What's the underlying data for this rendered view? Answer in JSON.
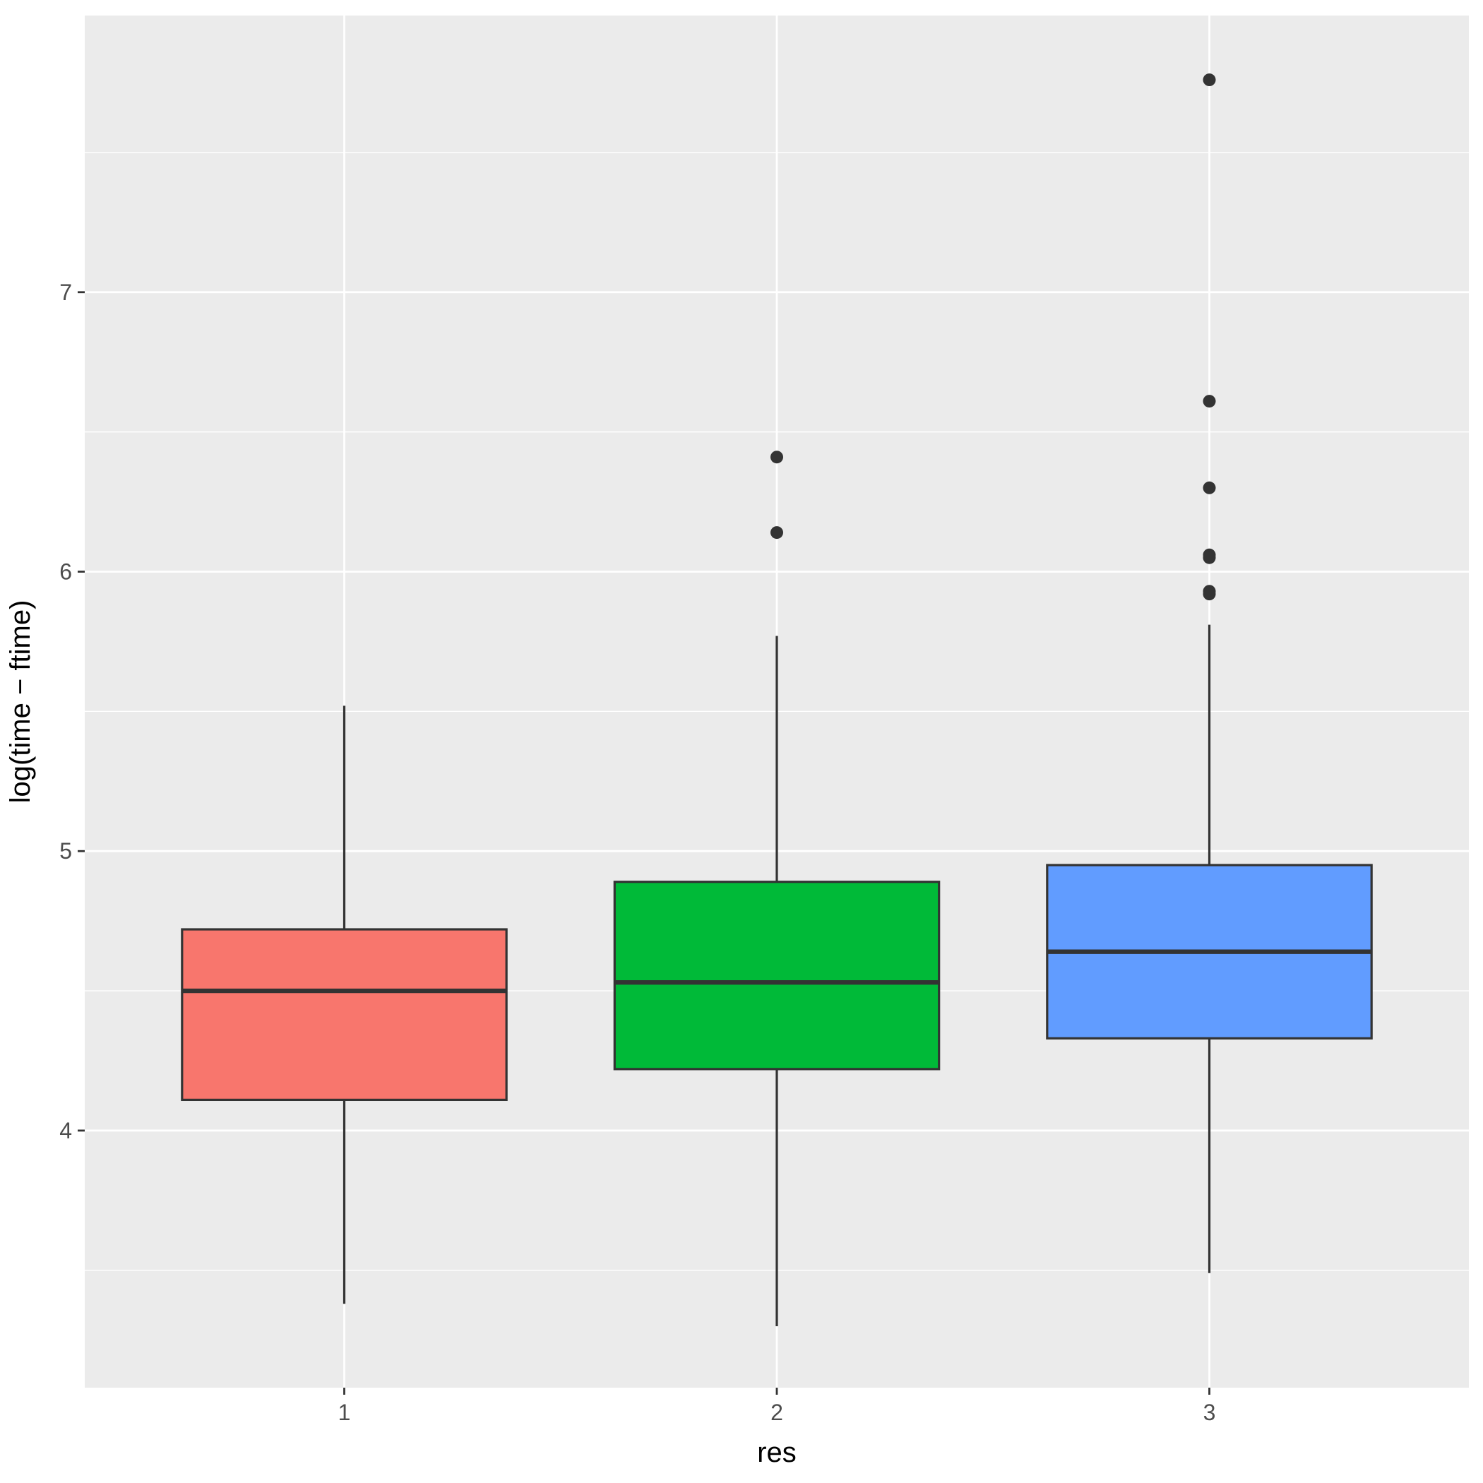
{
  "chart_data": {
    "type": "boxplot",
    "title": "",
    "xlabel": "res",
    "ylabel": "log(time − ftime)",
    "categories": [
      "1",
      "2",
      "3"
    ],
    "y_ticks": [
      "4",
      "5",
      "6",
      "7"
    ],
    "y_tick_values": [
      4,
      5,
      6,
      7
    ],
    "ylim": [
      3.08,
      7.99
    ],
    "grid": true,
    "legend": "none",
    "panel_background": "#ebebeb",
    "grid_color": "#ffffff",
    "box_outline_color": "#333333",
    "boxes": [
      {
        "category": "1",
        "fill": "#F8766D",
        "whisker_low": 3.38,
        "q1": 4.11,
        "median": 4.5,
        "q3": 4.72,
        "whisker_high": 5.52,
        "outliers": []
      },
      {
        "category": "2",
        "fill": "#00BA38",
        "whisker_low": 3.3,
        "q1": 4.22,
        "median": 4.53,
        "q3": 4.89,
        "whisker_high": 5.77,
        "outliers": [
          6.41,
          6.14
        ]
      },
      {
        "category": "3",
        "fill": "#619CFF",
        "whisker_low": 3.49,
        "q1": 4.33,
        "median": 4.64,
        "q3": 4.95,
        "whisker_high": 5.81,
        "outliers": [
          7.76,
          6.61,
          6.3,
          6.06,
          6.05,
          5.93,
          5.92
        ]
      }
    ]
  }
}
